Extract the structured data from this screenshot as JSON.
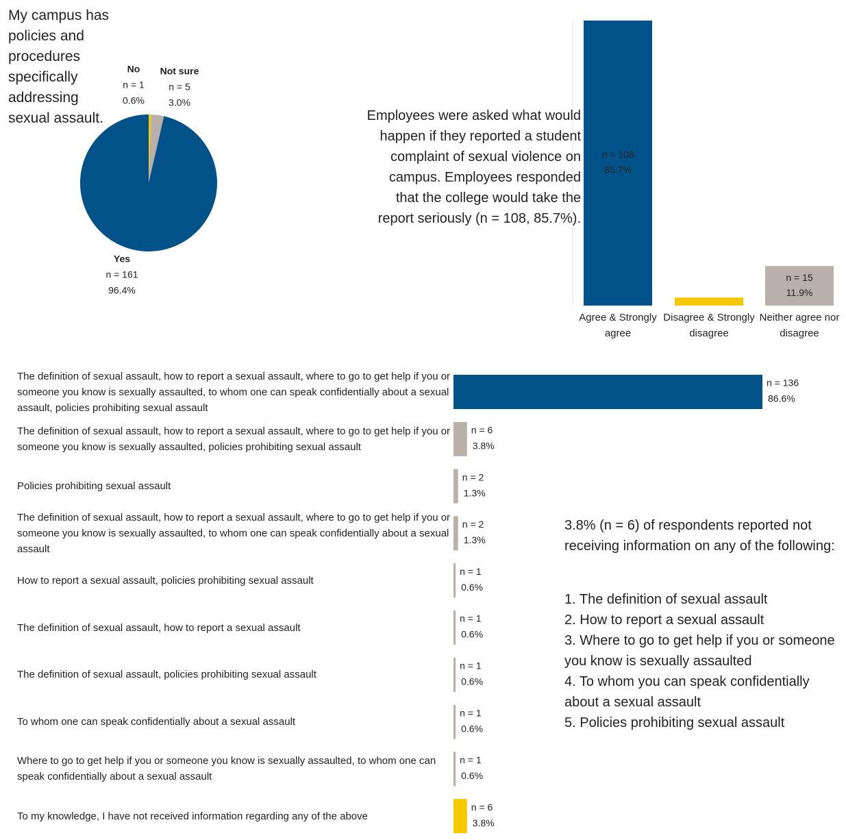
{
  "chart_data": [
    {
      "type": "pie",
      "title": "My campus has policies and procedures specifically addressing sexual assault.",
      "categories": [
        "No",
        "Not sure",
        "Yes"
      ],
      "values": [
        0.6,
        3.0,
        96.4
      ],
      "value_labels": [
        "0.6%",
        "3.0%",
        "96.4%"
      ],
      "count_labels": [
        "n = 1",
        "n = 5",
        "n = 161"
      ],
      "colors": [
        "#f5c800",
        "#b9b0ab",
        "#005288"
      ]
    },
    {
      "type": "bar",
      "annotation": "Employees were asked what would happen if they reported a student complaint of sexual violence on campus. Employees responded that the college would take the report seriously (n = 108, 85.7%).",
      "categories": [
        "Agree & Strongly agree",
        "Disagree & Strongly disagree",
        "Neither agree nor disagree"
      ],
      "values": [
        85.7,
        2.4,
        11.9
      ],
      "value_labels": [
        "85.7%",
        null,
        "11.9%"
      ],
      "count_labels": [
        "n = 108",
        null,
        "n = 15"
      ],
      "colors": [
        "#005288",
        "#f5c800",
        "#b9b0ab"
      ]
    },
    {
      "type": "hbar",
      "categories": [
        "The definition of sexual assault, how to report a sexual assault, where to go to get help if you or someone you know is sexually assaulted, to whom one can speak confidentially about a sexual assault, policies prohibiting sexual assault",
        "The definition of sexual assault, how to report a sexual assault, where to go to get help if you or someone you know is sexually assaulted, policies prohibiting sexual assault",
        "Policies prohibiting sexual assault",
        "The definition of sexual assault, how to report a sexual assault, where to go to get help if you or someone you know is sexually assaulted, to whom one can speak confidentially about a sexual assault",
        "How to report a sexual assault, policies prohibiting sexual assault",
        "The definition of sexual assault, how to report a sexual assault",
        "The definition of sexual assault, policies prohibiting sexual assault",
        "To whom one can speak confidentially about a sexual assault",
        "Where to go to get help if you or someone you know is sexually assaulted, to whom one can speak confidentially about a sexual assault",
        "To my knowledge, I have not received information regarding any of the above"
      ],
      "values": [
        86.6,
        3.8,
        1.3,
        1.3,
        0.6,
        0.6,
        0.6,
        0.6,
        0.6,
        3.8
      ],
      "value_labels": [
        "86.6%",
        "3.8%",
        "1.3%",
        "1.3%",
        "0.6%",
        "0.6%",
        "0.6%",
        "0.6%",
        "0.6%",
        "3.8%"
      ],
      "count_labels": [
        "n = 136",
        "n = 6",
        "n = 2",
        "n = 2",
        "n = 1",
        "n = 1",
        "n = 1",
        "n = 1",
        "n = 1",
        "n = 6"
      ],
      "colors": [
        "#005288",
        "#b9b0ab",
        "#b9b0ab",
        "#b9b0ab",
        "#b9b0ab",
        "#b9b0ab",
        "#b9b0ab",
        "#b9b0ab",
        "#b9b0ab",
        "#f5c800"
      ],
      "annotation": "3.8% (n = 6) of respondents reported not receiving information on any of the following:",
      "annotation_list": [
        "1. The definition of sexual assault",
        "2. How to report a sexual assault",
        "3. Where to go to get help if you or someone you know is sexually assaulted",
        "4. To whom you can speak confidentially about a sexual assault",
        "5. Policies prohibiting sexual assault"
      ]
    }
  ]
}
